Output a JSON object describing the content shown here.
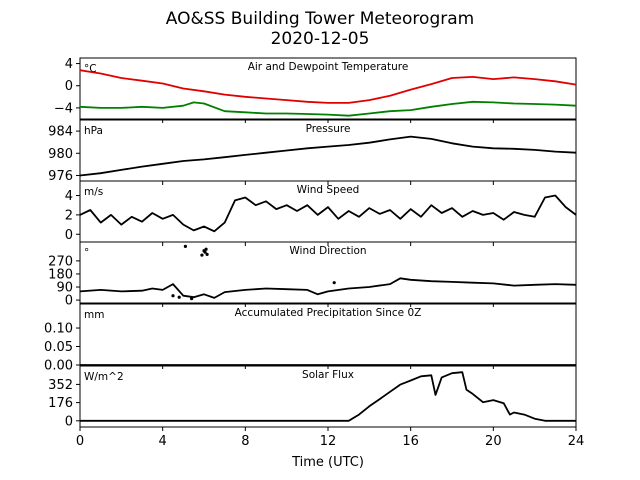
{
  "chart_data": {
    "type": "line",
    "title": "AO&SS Building Tower Meteorogram",
    "subtitle": "2020-12-05",
    "xlabel": "Time (UTC)",
    "xlim": [
      0,
      24
    ],
    "xticks": [
      0,
      4,
      8,
      12,
      16,
      20,
      24
    ],
    "panels": [
      {
        "id": "temp",
        "title": "Air and Dewpoint Temperature",
        "unit": "°C",
        "ylim": [
          -6,
          5
        ],
        "yticks": [
          4,
          0,
          -4
        ],
        "ytick_labels": [
          "4",
          "0",
          "−4"
        ],
        "series": [
          {
            "color": "#e00000",
            "x": [
              0,
              0.5,
              1,
              2,
              3,
              4,
              5,
              6,
              7,
              8,
              9,
              10,
              11,
              12,
              13,
              14,
              15,
              16,
              17,
              18,
              19,
              20,
              21,
              22,
              23,
              24
            ],
            "y": [
              2.8,
              2.5,
              2.2,
              1.4,
              0.9,
              0.4,
              -0.5,
              -1.0,
              -1.6,
              -2.0,
              -2.3,
              -2.6,
              -2.9,
              -3.1,
              -3.1,
              -2.6,
              -1.8,
              -0.7,
              0.3,
              1.4,
              1.6,
              1.2,
              1.5,
              1.2,
              0.8,
              0.2
            ]
          },
          {
            "color": "#008000",
            "x": [
              0,
              1,
              2,
              3,
              4,
              5,
              5.5,
              6,
              7,
              8,
              9,
              10,
              11,
              12,
              13,
              14,
              15,
              16,
              17,
              18,
              19,
              20,
              21,
              22,
              23,
              24
            ],
            "y": [
              -3.8,
              -4.0,
              -4.0,
              -3.8,
              -4.0,
              -3.6,
              -3.0,
              -3.2,
              -4.6,
              -4.8,
              -5.0,
              -5.0,
              -5.1,
              -5.2,
              -5.4,
              -5.0,
              -4.6,
              -4.4,
              -3.8,
              -3.3,
              -2.9,
              -3.0,
              -3.2,
              -3.3,
              -3.4,
              -3.6
            ]
          }
        ]
      },
      {
        "id": "pressure",
        "title": "Pressure",
        "unit": "hPa",
        "ylim": [
          975,
          986
        ],
        "yticks": [
          976,
          980,
          984
        ],
        "ytick_labels": [
          "976",
          "980",
          "984"
        ],
        "series": [
          {
            "color": "#000000",
            "x": [
              0,
              1,
              2,
              3,
              4,
              5,
              6,
              7,
              8,
              9,
              10,
              11,
              12,
              13,
              14,
              15,
              16,
              17,
              18,
              19,
              20,
              21,
              22,
              23,
              24
            ],
            "y": [
              976.0,
              976.4,
              977.0,
              977.6,
              978.1,
              978.6,
              978.9,
              979.3,
              979.7,
              980.1,
              980.5,
              980.9,
              981.2,
              981.5,
              981.9,
              982.5,
              983.0,
              982.6,
              981.8,
              981.2,
              980.9,
              980.8,
              980.6,
              980.3,
              980.1
            ]
          }
        ]
      },
      {
        "id": "wind-speed",
        "title": "Wind Speed",
        "unit": "m/s",
        "ylim": [
          -0.8,
          5.5
        ],
        "yticks": [
          0,
          2,
          4
        ],
        "ytick_labels": [
          "0",
          "2",
          "4"
        ],
        "series": [
          {
            "color": "#000000",
            "x": [
              0,
              0.5,
              1,
              1.5,
              2,
              2.5,
              3,
              3.5,
              4,
              4.5,
              5,
              5.5,
              6,
              6.5,
              7,
              7.5,
              8,
              8.5,
              9,
              9.5,
              10,
              10.5,
              11,
              11.5,
              12,
              12.5,
              13,
              13.5,
              14,
              14.5,
              15,
              15.5,
              16,
              16.5,
              17,
              17.5,
              18,
              18.5,
              19,
              19.5,
              20,
              20.5,
              21,
              21.5,
              22,
              22.5,
              23,
              23.5,
              24
            ],
            "y": [
              2.0,
              2.5,
              1.2,
              2.0,
              1.0,
              1.8,
              1.3,
              2.2,
              1.6,
              2.0,
              1.0,
              0.4,
              0.8,
              0.3,
              1.2,
              3.5,
              3.8,
              3.0,
              3.4,
              2.6,
              3.0,
              2.4,
              3.0,
              2.0,
              2.8,
              1.6,
              2.4,
              1.8,
              2.7,
              2.1,
              2.5,
              1.6,
              2.6,
              1.8,
              3.0,
              2.2,
              2.7,
              1.8,
              2.4,
              2.0,
              2.2,
              1.5,
              2.3,
              2.0,
              1.8,
              3.8,
              4.0,
              2.8,
              2.0
            ]
          }
        ]
      },
      {
        "id": "wind-direction",
        "title": "Wind Direction",
        "unit": "°",
        "ylim": [
          -20,
          400
        ],
        "yticks": [
          0,
          90,
          180,
          270
        ],
        "ytick_labels": [
          "0",
          "90",
          "180",
          "270"
        ],
        "series": [
          {
            "color": "#000000",
            "x": [
              0,
              1,
              2,
              3,
              3.5,
              4,
              4.5,
              5,
              5.5,
              6,
              6.5,
              7,
              8,
              9,
              10,
              11,
              11.5,
              12,
              13,
              14,
              15,
              15.5,
              16,
              17,
              18,
              19,
              20,
              21,
              22,
              23,
              24
            ],
            "y": [
              60,
              70,
              60,
              65,
              80,
              70,
              110,
              30,
              20,
              40,
              15,
              55,
              70,
              80,
              75,
              70,
              40,
              60,
              80,
              90,
              110,
              150,
              140,
              130,
              125,
              120,
              115,
              100,
              105,
              110,
              105
            ]
          }
        ],
        "points": {
          "x": [
            4.5,
            4.8,
            5.1,
            5.4,
            5.9,
            6.0,
            6.05,
            6.1,
            6.15,
            12.3
          ],
          "y": [
            30,
            20,
            370,
            10,
            310,
            340,
            330,
            350,
            315,
            120
          ]
        }
      },
      {
        "id": "precip",
        "title": "Accumulated Precipitation Since 0Z",
        "unit": "mm",
        "ylim": [
          0,
          0.165
        ],
        "yticks": [
          0.0,
          0.05,
          0.1
        ],
        "ytick_labels": [
          "0.00",
          "0.05",
          "0.10"
        ],
        "series": [
          {
            "color": "#000000",
            "x": [
              0,
              24
            ],
            "y": [
              0,
              0
            ]
          }
        ]
      },
      {
        "id": "solar",
        "title": "Solar Flux",
        "unit": "W/m^2",
        "ylim": [
          -60,
          530
        ],
        "yticks": [
          0,
          176,
          352
        ],
        "ytick_labels": [
          "0",
          "176",
          "352"
        ],
        "series": [
          {
            "color": "#000000",
            "x": [
              0,
              13,
              13.5,
              14,
              14.5,
              15,
              15.5,
              16,
              16.5,
              17,
              17.2,
              17.5,
              18,
              18.5,
              18.7,
              19,
              19.5,
              20,
              20.5,
              20.8,
              21,
              21.5,
              22,
              22.5,
              23,
              24
            ],
            "y": [
              0,
              0,
              60,
              140,
              210,
              280,
              350,
              390,
              430,
              440,
              250,
              420,
              460,
              470,
              300,
              260,
              180,
              200,
              170,
              60,
              80,
              60,
              20,
              0,
              0,
              0
            ]
          }
        ]
      }
    ]
  }
}
